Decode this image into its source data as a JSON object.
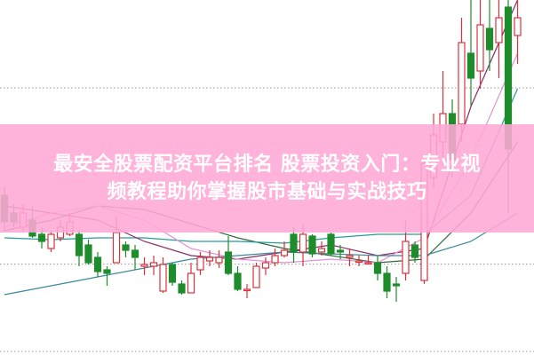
{
  "banner": {
    "title_line1": "最安全股票配资平台排名 股票投资入门：专业视",
    "title_line2": "频教程助你掌握股市基础与实战技巧"
  },
  "chart_data": {
    "type": "candlestick",
    "title": "",
    "xlabel": "",
    "ylabel": "",
    "ylim": [
      0,
      100
    ],
    "grid": true,
    "grid_levels": [
      75.25,
      25.6,
      1
    ],
    "colors": {
      "up": "#d8323c",
      "down": "#1e8c2a",
      "banner": "#ffa8d6"
    },
    "candles": [
      [
        45,
        47.5,
        35,
        37.5
      ],
      [
        40,
        42.5,
        36,
        37.5
      ],
      [
        36,
        42.5,
        35,
        40
      ],
      [
        38,
        42,
        33,
        33.5
      ],
      [
        34,
        36,
        30,
        32
      ],
      [
        30,
        35,
        29,
        34
      ],
      [
        33,
        38,
        32,
        36
      ],
      [
        34,
        40,
        33.5,
        37.5
      ],
      [
        34,
        35,
        25,
        28
      ],
      [
        31,
        32.5,
        25.5,
        26
      ],
      [
        27.5,
        29,
        22,
        23.5
      ],
      [
        24,
        25,
        19.5,
        23
      ],
      [
        26,
        39,
        26,
        34.5
      ],
      [
        31,
        32,
        27.5,
        29.5
      ],
      [
        29.5,
        31,
        24,
        27.5
      ],
      [
        25,
        27.5,
        22.5,
        25.5
      ],
      [
        25,
        28,
        22.5,
        26
      ],
      [
        18,
        27.5,
        17.5,
        25.5
      ],
      [
        25.5,
        26,
        19.5,
        20.5
      ],
      [
        20,
        21,
        17,
        17.5
      ],
      [
        17.5,
        26,
        18,
        23
      ],
      [
        24,
        29,
        22.5,
        27.5
      ],
      [
        26.5,
        29.5,
        25,
        27.5
      ],
      [
        26,
        29.5,
        24.5,
        27.5
      ],
      [
        29,
        33.5,
        22.5,
        23
      ],
      [
        23,
        25,
        18,
        18.5
      ],
      [
        18.5,
        20,
        16,
        18.5
      ],
      [
        19,
        26,
        19,
        25
      ],
      [
        24.5,
        27.5,
        22.5,
        26
      ],
      [
        26,
        30,
        25,
        28
      ],
      [
        28,
        32,
        27.5,
        29.5
      ],
      [
        34,
        36,
        26,
        29
      ],
      [
        29,
        37,
        25,
        34
      ],
      [
        33.5,
        34,
        27.5,
        28.5
      ],
      [
        29,
        32,
        28,
        30
      ],
      [
        34,
        34.5,
        28,
        28.5
      ],
      [
        29.5,
        31,
        27,
        29
      ],
      [
        27.5,
        30,
        25,
        28
      ],
      [
        26.5,
        28,
        25,
        26.5
      ],
      [
        26,
        28,
        25.5,
        26
      ],
      [
        26,
        28,
        21,
        23
      ],
      [
        23,
        25,
        16,
        18
      ],
      [
        20,
        22,
        15,
        19.5
      ],
      [
        23,
        38,
        21,
        32
      ],
      [
        31,
        32,
        26,
        27.5
      ],
      [
        21,
        55,
        20,
        54
      ],
      [
        50,
        68,
        47,
        62
      ],
      [
        60,
        80,
        55,
        68
      ],
      [
        68,
        72,
        50,
        55
      ],
      [
        65,
        95,
        60,
        88
      ],
      [
        85,
        100,
        70,
        78
      ],
      [
        80,
        100,
        75,
        93
      ],
      [
        92,
        100,
        80,
        86
      ],
      [
        88,
        100,
        78,
        95
      ],
      [
        98,
        100,
        40,
        58
      ],
      [
        90,
        100,
        82,
        95
      ]
    ],
    "candle_fields": [
      "open",
      "high",
      "low",
      "close"
    ],
    "moving_averages": [
      {
        "color": "#2f6b3a",
        "x": [
          0,
          5,
          10,
          15,
          20,
          25,
          30,
          35,
          40,
          45,
          50,
          55
        ],
        "y": [
          35,
          38,
          42,
          41,
          37,
          33,
          30,
          28,
          26,
          27,
          40,
          60
        ]
      },
      {
        "color": "#2a9a9a",
        "x": [
          0,
          5,
          10,
          15,
          20,
          25,
          30,
          35,
          40,
          45,
          50,
          55
        ],
        "y": [
          33,
          32.5,
          33,
          33,
          32,
          32,
          31.5,
          33,
          34,
          34,
          45,
          75
        ]
      },
      {
        "color": "#8a2a6a",
        "x": [
          0,
          5,
          10,
          15,
          20,
          25,
          30,
          35,
          40,
          45,
          50,
          55
        ],
        "y": [
          42,
          40,
          38,
          32,
          28,
          27,
          29,
          31,
          28,
          30,
          70,
          100
        ]
      },
      {
        "color": "#e58fd8",
        "x": [
          0,
          5,
          10,
          15,
          20,
          25,
          30,
          35,
          40,
          45,
          50,
          55
        ],
        "y": [
          36,
          40,
          42,
          38,
          30,
          27,
          26,
          27,
          26,
          33,
          55,
          85
        ]
      },
      {
        "color": "#3a8a9a",
        "x": [
          0,
          10,
          20,
          30,
          40,
          45,
          50,
          55
        ],
        "y": [
          17,
          22,
          27,
          29,
          28,
          28,
          32,
          40
        ]
      }
    ]
  }
}
